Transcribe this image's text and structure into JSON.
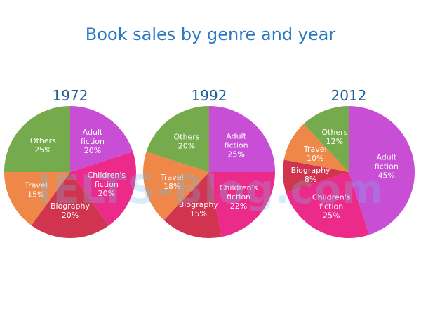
{
  "title": "Book sales by genre and year",
  "watermark": "IELTS-Blog.com",
  "colors": {
    "title": "#2a79c2",
    "year": "#1f5f95",
    "label": "#ffffff",
    "Adult fiction": "#c84ed6",
    "Children's fiction": "#ec2a8a",
    "Biography": "#d1344f",
    "Travel": "#ee8747",
    "Others": "#75aa4d"
  },
  "chart_data": [
    {
      "type": "pie",
      "title": "1972",
      "categories": [
        "Adult fiction",
        "Children's fiction",
        "Biography",
        "Travel",
        "Others"
      ],
      "values": [
        20,
        20,
        20,
        15,
        25
      ],
      "labels": [
        {
          "lines": [
            "Adult",
            "fiction",
            "20%"
          ]
        },
        {
          "lines": [
            "Children's",
            "fiction",
            "20%"
          ]
        },
        {
          "lines": [
            "Biography",
            "20%"
          ]
        },
        {
          "lines": [
            "Travel",
            "15%"
          ]
        },
        {
          "lines": [
            "Others",
            "25%"
          ]
        }
      ]
    },
    {
      "type": "pie",
      "title": "1992",
      "categories": [
        "Adult fiction",
        "Children's fiction",
        "Biography",
        "Travel",
        "Others"
      ],
      "values": [
        25,
        22,
        15,
        18,
        20
      ],
      "labels": [
        {
          "lines": [
            "Adult",
            "fiction",
            "25%"
          ]
        },
        {
          "lines": [
            "Children's",
            "fiction",
            "22%"
          ]
        },
        {
          "lines": [
            "Biography",
            "15%"
          ]
        },
        {
          "lines": [
            "Travel",
            "18%"
          ]
        },
        {
          "lines": [
            "Others",
            "20%"
          ]
        }
      ]
    },
    {
      "type": "pie",
      "title": "2012",
      "categories": [
        "Adult fiction",
        "Children's fiction",
        "Biography",
        "Travel",
        "Others"
      ],
      "values": [
        45,
        25,
        8,
        10,
        12
      ],
      "labels": [
        {
          "lines": [
            "Adult",
            "fiction",
            "45%"
          ]
        },
        {
          "lines": [
            "Children's",
            "fiction",
            "25%"
          ]
        },
        {
          "lines": [
            "Biography",
            "8%"
          ]
        },
        {
          "lines": [
            "Travel",
            "10%"
          ]
        },
        {
          "lines": [
            "Others",
            "12%"
          ]
        }
      ]
    }
  ]
}
